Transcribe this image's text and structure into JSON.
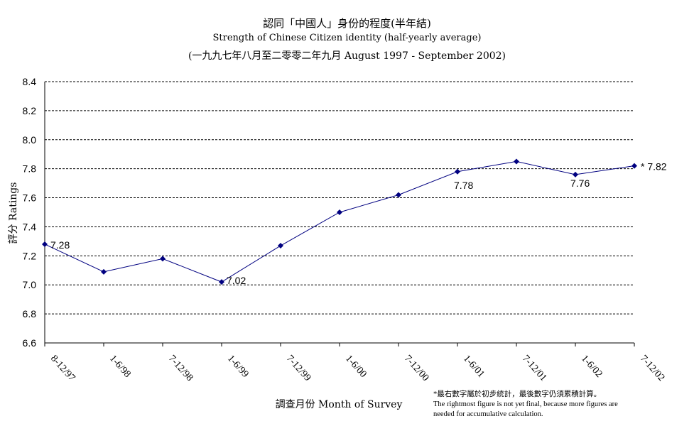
{
  "title": {
    "line1": "認同「中國人」身份的程度(半年結)",
    "line2": "Strength of Chinese Citizen identity (half-yearly average)",
    "line3": "(一九九七年八月至二零零二年九月 August 1997 - September 2002)"
  },
  "footnote": {
    "line1": "*最右數字屬於初步統計，最後數字仍須累積計算。",
    "line2": "The rightmost figure is not yet final, because more figures are",
    "line3": "needed for accumulative calculation."
  },
  "chart_data": {
    "type": "line",
    "title": "認同「中國人」身份的程度(半年結)",
    "xlabel": "調查月份 Month of Survey",
    "ylabel": "評分 Ratings",
    "ylim": [
      6.6,
      8.4
    ],
    "yticks": [
      "6.6",
      "6.8",
      "7.0",
      "7.2",
      "7.4",
      "7.6",
      "7.8",
      "8.0",
      "8.2",
      "8.4"
    ],
    "grid": "horizontal dashed",
    "line_color": "#000080",
    "categories": [
      "8-12/97",
      "1-6/98",
      "7-12/98",
      "1-6/99",
      "7-12/99",
      "1-6/00",
      "7-12/00",
      "1-6/01",
      "7-12/01",
      "1-6/02",
      "7-12/02"
    ],
    "values": [
      7.28,
      7.09,
      7.18,
      7.02,
      7.27,
      7.5,
      7.62,
      7.78,
      7.85,
      7.76,
      7.82
    ],
    "data_labels": [
      {
        "index": 0,
        "text": "7.28"
      },
      {
        "index": 3,
        "text": "7.02"
      },
      {
        "index": 7,
        "text": "7.78"
      },
      {
        "index": 9,
        "text": "7.76"
      },
      {
        "index": 10,
        "text": "* 7.82"
      }
    ]
  }
}
